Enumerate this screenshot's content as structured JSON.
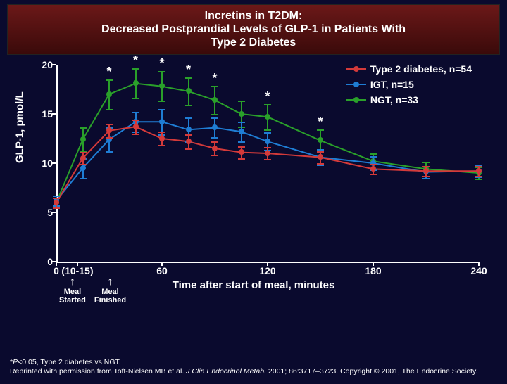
{
  "title": {
    "line1": "Incretins in T2DM:",
    "line2": "Decreased Postprandial Levels of GLP-1 in Patients With",
    "line3": "Type 2 Diabetes"
  },
  "chart": {
    "type": "line",
    "background_color": "#0a0a2e",
    "title_fontsize": 16,
    "ylabel": "GLP-1, pmol/L",
    "xlabel": "Time after start of meal, minutes",
    "label_fontsize": 15,
    "tick_fontsize": 14,
    "text_color": "#ffffff",
    "axis_color": "#ffffff",
    "line_width": 2,
    "marker_size": 8,
    "ylim": [
      0,
      20
    ],
    "ytick_step": 5,
    "yticks": [
      0,
      5,
      10,
      15,
      20
    ],
    "xlim": [
      0,
      240
    ],
    "xticks": [
      {
        "v": 0,
        "label": "0"
      },
      {
        "v": 12,
        "label": "(10-15)"
      },
      {
        "v": 60,
        "label": "60"
      },
      {
        "v": 120,
        "label": "120"
      },
      {
        "v": 180,
        "label": "180"
      },
      {
        "v": 240,
        "label": "240"
      }
    ],
    "pairs": [
      {
        "x": 0,
        "t2dm": 6.0,
        "igt": 6.2,
        "ngt": 6.0,
        "e_t2dm": 0.5,
        "e_igt": 0.5,
        "e_ngt": 0.5
      },
      {
        "x": 15,
        "t2dm": 10.5,
        "igt": 9.5,
        "ngt": 12.4,
        "e_t2dm": 0.6,
        "e_igt": 1.0,
        "e_ngt": 1.2
      },
      {
        "x": 30,
        "t2dm": 13.3,
        "igt": 12.4,
        "ngt": 17.0,
        "e_t2dm": 0.7,
        "e_igt": 1.2,
        "e_ngt": 1.5,
        "sig": true
      },
      {
        "x": 45,
        "t2dm": 13.7,
        "igt": 14.2,
        "ngt": 18.1,
        "e_t2dm": 0.7,
        "e_igt": 1.0,
        "e_ngt": 1.5,
        "sig": true
      },
      {
        "x": 60,
        "t2dm": 12.5,
        "igt": 14.2,
        "ngt": 17.8,
        "e_t2dm": 0.7,
        "e_igt": 1.3,
        "e_ngt": 1.5,
        "sig": true
      },
      {
        "x": 75,
        "t2dm": 12.2,
        "igt": 13.4,
        "ngt": 17.3,
        "e_t2dm": 0.7,
        "e_igt": 1.2,
        "e_ngt": 1.4,
        "sig": true
      },
      {
        "x": 90,
        "t2dm": 11.5,
        "igt": 13.6,
        "ngt": 16.4,
        "e_t2dm": 0.7,
        "e_igt": 1.0,
        "e_ngt": 1.4,
        "sig": true
      },
      {
        "x": 105,
        "t2dm": 11.1,
        "igt": 13.2,
        "ngt": 15.0,
        "e_t2dm": 0.6,
        "e_igt": 1.0,
        "e_ngt": 1.3
      },
      {
        "x": 120,
        "t2dm": 11.0,
        "igt": 12.2,
        "ngt": 14.7,
        "e_t2dm": 0.6,
        "e_igt": 0.9,
        "e_ngt": 1.3,
        "sig": true
      },
      {
        "x": 150,
        "t2dm": 10.6,
        "igt": 10.6,
        "ngt": 12.3,
        "e_t2dm": 0.6,
        "e_igt": 0.8,
        "e_ngt": 1.1,
        "sig": true
      },
      {
        "x": 180,
        "t2dm": 9.4,
        "igt": 10.0,
        "ngt": 10.2,
        "e_t2dm": 0.5,
        "e_igt": 0.7,
        "e_ngt": 0.8
      },
      {
        "x": 210,
        "t2dm": 9.2,
        "igt": 9.1,
        "ngt": 9.4,
        "e_t2dm": 0.5,
        "e_igt": 0.6,
        "e_ngt": 0.7
      },
      {
        "x": 240,
        "t2dm": 9.2,
        "igt": 9.2,
        "ngt": 9.0,
        "e_t2dm": 0.5,
        "e_igt": 0.6,
        "e_ngt": 0.6
      }
    ],
    "series": [
      {
        "key": "ngt",
        "ekey": "e_ngt",
        "label": "NGT, n=33",
        "color": "#2aa02a"
      },
      {
        "key": "igt",
        "ekey": "e_igt",
        "label": "IGT, n=15",
        "color": "#1f7dd4"
      },
      {
        "key": "t2dm",
        "ekey": "e_t2dm",
        "label": "Type 2 diabetes, n=54",
        "color": "#d43a3a"
      }
    ],
    "legend_order": [
      "t2dm",
      "igt",
      "ngt"
    ],
    "legend_position": "top-right",
    "annotations": [
      {
        "label1": "Meal",
        "label2": "Started"
      },
      {
        "label1": "Meal",
        "label2": "Finished"
      }
    ]
  },
  "footnote": {
    "line1_prefix": "*",
    "line1_ital": "P",
    "line1_rest": "<0.05, Type 2 diabetes vs NGT.",
    "line2_a": "Reprinted with permission from Toft-Nielsen MB et al. ",
    "line2_ital": "J Clin Endocrinol Metab.",
    "line2_b": " 2001; 86:3717–3723. Copyright © 2001, The Endocrine Society."
  }
}
